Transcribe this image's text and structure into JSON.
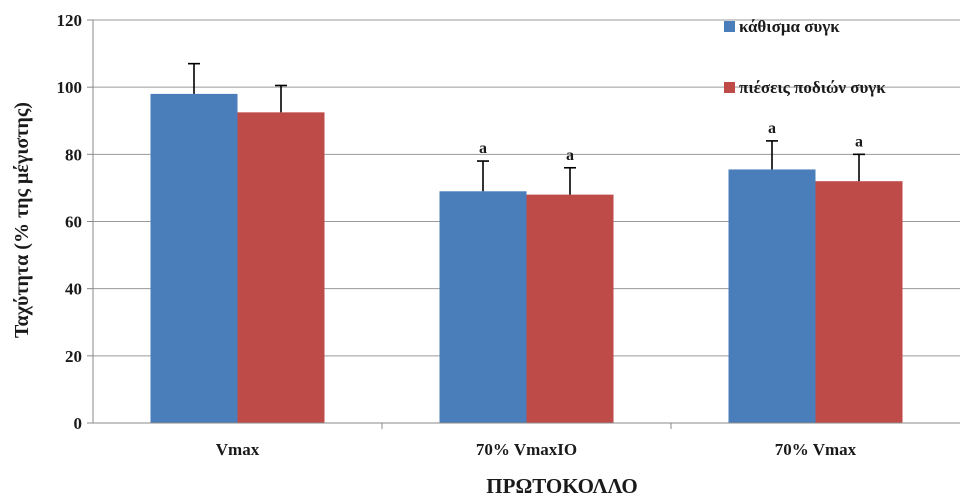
{
  "chart_data": {
    "type": "bar",
    "xlabel": "ΠΡΩΤΟΚΟΛΛΟ",
    "ylabel": "Ταχύτητα (% της μέγιστης)",
    "ylim": [
      0,
      120
    ],
    "yticks": [
      0,
      20,
      40,
      60,
      80,
      100,
      120
    ],
    "grid": true,
    "legend_position": "top-right",
    "categories": [
      "Vmax",
      "70% VmaxIO",
      "70% Vmax"
    ],
    "series": [
      {
        "name": "κάθισμα συγκ",
        "color": "#4a7ebb",
        "values": [
          98,
          69,
          75.5
        ],
        "errors": [
          9,
          9,
          8.5
        ],
        "annotations": [
          "",
          "a",
          "a"
        ]
      },
      {
        "name": "πιέσεις ποδιών συγκ",
        "color": "#be4b48",
        "values": [
          92.5,
          68,
          72
        ],
        "errors": [
          8,
          8,
          8
        ],
        "annotations": [
          "",
          "a",
          "a"
        ]
      }
    ]
  }
}
